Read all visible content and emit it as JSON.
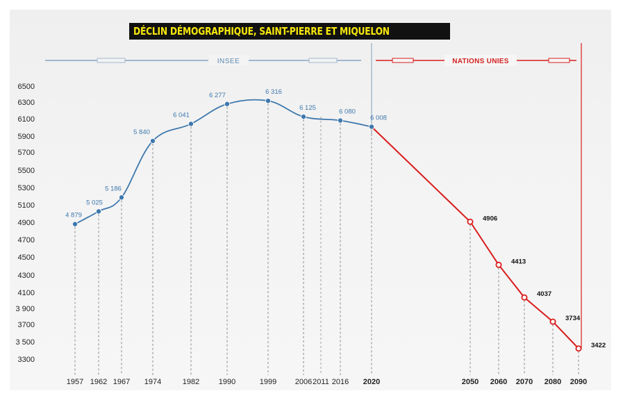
{
  "chart_data": {
    "type": "line",
    "title": "DÉCLIN DÉMOGRAPHIQUE,  SAINT-PIERRE ET MIQUELON",
    "xlabel": "",
    "ylabel": "",
    "ylim": [
      3300,
      6500
    ],
    "y_ticks": [
      "6500",
      "6300",
      "6100",
      "5900",
      "5700",
      "5500",
      "5300",
      "5100",
      "4900",
      "4700",
      "4500",
      "4300",
      "4100",
      "3 900",
      "3700",
      "3 500",
      "3300"
    ],
    "sources": {
      "insee": "INSEE",
      "un": "NATIONS UNIES"
    },
    "colors": {
      "insee": "#3e78ad",
      "un": "#d91c1c",
      "title_bg": "#111111",
      "title_fg": "#f5e60c"
    },
    "series": [
      {
        "name": "INSEE",
        "points": [
          {
            "year": "1957",
            "value": 4879,
            "label": "4 879"
          },
          {
            "year": "1962",
            "value": 5025,
            "label": "5 025"
          },
          {
            "year": "1967",
            "value": 5186,
            "label": "5 186"
          },
          {
            "year": "1974",
            "value": 5840,
            "label": "5 840"
          },
          {
            "year": "1982",
            "value": 6041,
            "label": "6 041"
          },
          {
            "year": "1990",
            "value": 6277,
            "label": "6 277"
          },
          {
            "year": "1999",
            "value": 6316,
            "label": "6 316"
          },
          {
            "year": "2006",
            "value": 6125,
            "label": "6 125"
          },
          {
            "year": "2011",
            "value": null,
            "label": ""
          },
          {
            "year": "2016",
            "value": 6080,
            "label": "6 080"
          },
          {
            "year": "2020",
            "value": 6008,
            "label": "6 008"
          }
        ]
      },
      {
        "name": "NATIONS UNIES",
        "points": [
          {
            "year": "2020",
            "value": 6008,
            "label": ""
          },
          {
            "year": "2050",
            "value": 4906,
            "label": "4906"
          },
          {
            "year": "2060",
            "value": 4413,
            "label": "4413"
          },
          {
            "year": "2070",
            "value": 4037,
            "label": "4037"
          },
          {
            "year": "2080",
            "value": 3734,
            "label": "3734"
          },
          {
            "year": "2090",
            "value": 3422,
            "label": "3422"
          }
        ]
      }
    ]
  }
}
